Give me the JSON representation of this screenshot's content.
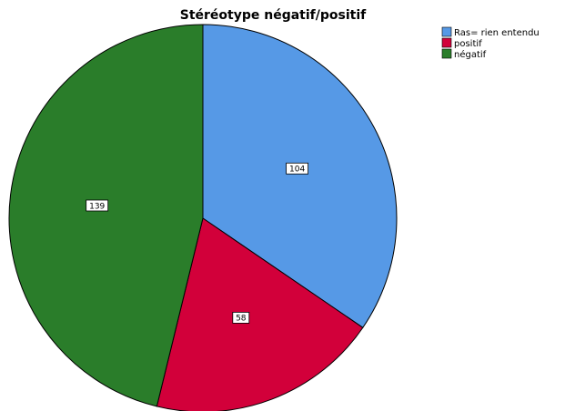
{
  "chart_data": {
    "type": "pie",
    "title": "Stéréotype négatif/positif",
    "legend_position": "top-right",
    "start_angle": "12 o'clock",
    "direction": "clockwise",
    "slices": [
      {
        "label": "Ras= rien entendu",
        "value": 104,
        "color": "#5699e6"
      },
      {
        "label": "positif",
        "value": 58,
        "color": "#d2003a"
      },
      {
        "label": "négatif",
        "value": 139,
        "color": "#2a7d2a"
      }
    ]
  }
}
